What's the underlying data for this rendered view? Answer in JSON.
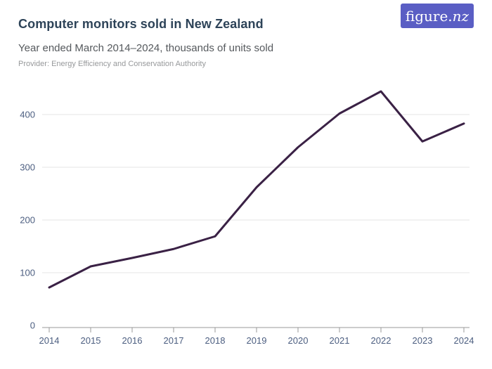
{
  "header": {
    "title": "Computer monitors sold in New Zealand",
    "subtitle": "Year ended March 2014–2024, thousands of units sold",
    "provider": "Provider: Energy Efficiency and Conservation Authority"
  },
  "logo": {
    "text_regular": "figure.",
    "text_italic": "nz",
    "bg_color": "#5a5ec4",
    "text_color": "#ffffff"
  },
  "chart_data": {
    "type": "line",
    "title": "Computer monitors sold in New Zealand",
    "subtitle": "Year ended March 2014–2024, thousands of units sold",
    "xlabel": "",
    "ylabel": "thousands of units sold",
    "categories": [
      "2014",
      "2015",
      "2016",
      "2017",
      "2018",
      "2019",
      "2020",
      "2021",
      "2022",
      "2023",
      "2024"
    ],
    "series": [
      {
        "name": "Computer monitors sold",
        "values": [
          72,
          112,
          128,
          145,
          169,
          262,
          338,
          402,
          444,
          349,
          383
        ]
      }
    ],
    "ylim": [
      0,
      450
    ],
    "yticks": [
      0,
      100,
      200,
      300,
      400
    ],
    "grid": true,
    "legend_position": "none",
    "colors": {
      "line": "#3a2145",
      "gridline": "#e6e6e6",
      "axis_line": "#999999",
      "tick_label": "#4c5e80"
    }
  }
}
